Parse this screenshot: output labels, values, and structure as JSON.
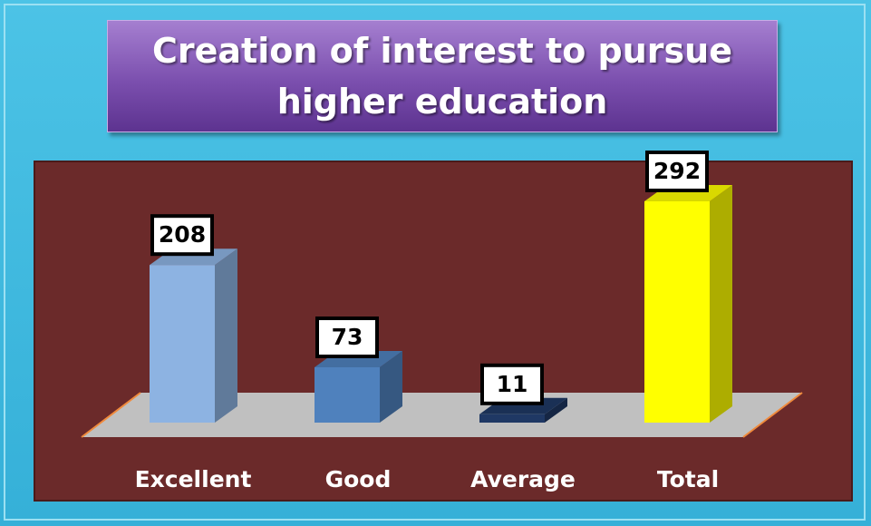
{
  "chart_data": {
    "type": "bar3d",
    "title": "Creation of interest to pursue higher education",
    "categories": [
      "Excellent",
      "Good",
      "Average",
      "Total"
    ],
    "values": [
      208,
      73,
      11,
      292
    ],
    "colors": [
      "#8db3e2",
      "#4f81bd",
      "#1f3864",
      "#ffff00"
    ]
  }
}
